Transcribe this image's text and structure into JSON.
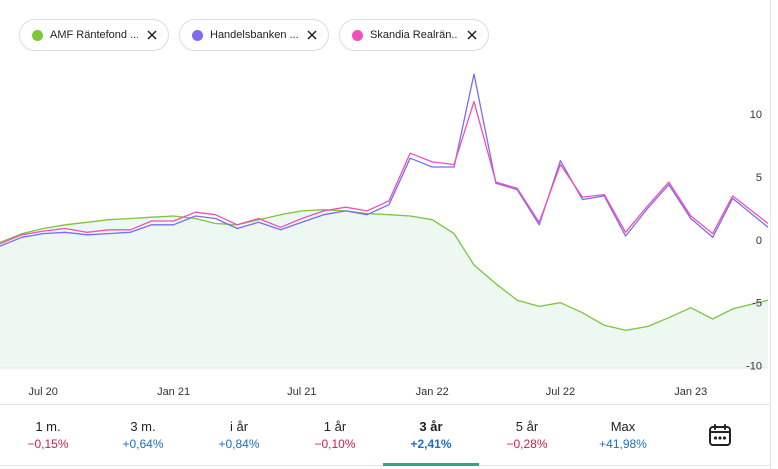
{
  "legend": [
    {
      "label": "AMF Räntefond ...",
      "color": "#7cc63a"
    },
    {
      "label": "Handelsbanken ...",
      "color": "#7b6cf0"
    },
    {
      "label": "Skandia Realrän...",
      "color": "#f050b8"
    }
  ],
  "periods": [
    {
      "label": "1 m.",
      "value": "−0,15%",
      "color": "#cc1f4a"
    },
    {
      "label": "3 m.",
      "value": "+0,64%",
      "color": "#1f6fc0"
    },
    {
      "label": "i år",
      "value": "+0,84%",
      "color": "#1f6fc0"
    },
    {
      "label": "1 år",
      "value": "−0,10%",
      "color": "#cc1f4a"
    },
    {
      "label": "3 år",
      "value": "+2,41%",
      "color": "#1f6fc0",
      "active": true
    },
    {
      "label": "5 år",
      "value": "−0,28%",
      "color": "#cc1f4a"
    },
    {
      "label": "Max",
      "value": "+41,98%",
      "color": "#1f6fc0"
    }
  ],
  "calendar_icon": "calendar-icon",
  "chart_data": {
    "type": "line",
    "x_ticks": [
      "Jul 20",
      "Jan 21",
      "Jul 21",
      "Jan 22",
      "Jul 22",
      "Jan 23"
    ],
    "x_tick_dates": [
      "2020-07-01",
      "2021-01-01",
      "2021-07-01",
      "2022-01-01",
      "2022-07-01",
      "2023-01-01"
    ],
    "x_range": [
      "2020-05-01",
      "2023-04-20"
    ],
    "y_ticks": [
      10,
      5,
      0,
      -5,
      -10
    ],
    "ylim": [
      -10.2,
      13.2
    ],
    "grid": false,
    "series": [
      {
        "name": "AMF Räntefond ...",
        "color": "#7cc63a",
        "points": [
          [
            "2020-05-01",
            -0.2
          ],
          [
            "2020-06-01",
            0.5
          ],
          [
            "2020-07-01",
            0.9
          ],
          [
            "2020-08-01",
            1.2
          ],
          [
            "2020-09-01",
            1.4
          ],
          [
            "2020-10-01",
            1.6
          ],
          [
            "2020-11-01",
            1.7
          ],
          [
            "2020-12-01",
            1.8
          ],
          [
            "2021-01-01",
            1.9
          ],
          [
            "2021-02-01",
            1.7
          ],
          [
            "2021-03-01",
            1.3
          ],
          [
            "2021-04-01",
            1.2
          ],
          [
            "2021-05-01",
            1.6
          ],
          [
            "2021-06-01",
            2.0
          ],
          [
            "2021-07-01",
            2.3
          ],
          [
            "2021-08-01",
            2.4
          ],
          [
            "2021-09-01",
            2.3
          ],
          [
            "2021-10-01",
            2.1
          ],
          [
            "2021-11-01",
            2.0
          ],
          [
            "2021-12-01",
            1.9
          ],
          [
            "2022-01-01",
            1.6
          ],
          [
            "2022-02-01",
            0.5
          ],
          [
            "2022-03-01",
            -2.0
          ],
          [
            "2022-04-01",
            -3.5
          ],
          [
            "2022-05-01",
            -4.8
          ],
          [
            "2022-06-01",
            -5.3
          ],
          [
            "2022-07-01",
            -5.0
          ],
          [
            "2022-08-01",
            -5.8
          ],
          [
            "2022-09-01",
            -6.8
          ],
          [
            "2022-10-01",
            -7.2
          ],
          [
            "2022-11-01",
            -6.9
          ],
          [
            "2022-12-01",
            -6.2
          ],
          [
            "2023-01-01",
            -5.4
          ],
          [
            "2023-02-01",
            -6.3
          ],
          [
            "2023-03-01",
            -5.5
          ],
          [
            "2023-04-20",
            -4.8
          ]
        ]
      },
      {
        "name": "Handelsbanken ...",
        "color": "#7b6cf0",
        "points": [
          [
            "2020-05-01",
            -0.5
          ],
          [
            "2020-06-01",
            0.2
          ],
          [
            "2020-07-01",
            0.5
          ],
          [
            "2020-08-01",
            0.6
          ],
          [
            "2020-09-01",
            0.4
          ],
          [
            "2020-10-01",
            0.5
          ],
          [
            "2020-11-01",
            0.6
          ],
          [
            "2020-12-01",
            1.2
          ],
          [
            "2021-01-01",
            1.2
          ],
          [
            "2021-02-01",
            1.9
          ],
          [
            "2021-03-01",
            1.7
          ],
          [
            "2021-04-01",
            0.9
          ],
          [
            "2021-05-01",
            1.4
          ],
          [
            "2021-06-01",
            0.8
          ],
          [
            "2021-07-01",
            1.4
          ],
          [
            "2021-08-01",
            2.0
          ],
          [
            "2021-09-01",
            2.3
          ],
          [
            "2021-10-01",
            2.0
          ],
          [
            "2021-11-01",
            2.8
          ],
          [
            "2021-12-01",
            6.5
          ],
          [
            "2022-01-01",
            5.8
          ],
          [
            "2022-02-01",
            5.8
          ],
          [
            "2022-03-01",
            13.2
          ],
          [
            "2022-04-01",
            4.5
          ],
          [
            "2022-05-01",
            4.0
          ],
          [
            "2022-06-01",
            1.2
          ],
          [
            "2022-07-01",
            6.3
          ],
          [
            "2022-08-01",
            3.2
          ],
          [
            "2022-09-01",
            3.5
          ],
          [
            "2022-10-01",
            0.3
          ],
          [
            "2022-11-01",
            2.5
          ],
          [
            "2022-12-01",
            4.4
          ],
          [
            "2023-01-01",
            1.7
          ],
          [
            "2023-02-01",
            0.2
          ],
          [
            "2023-03-01",
            3.3
          ],
          [
            "2023-04-20",
            1.0
          ]
        ]
      },
      {
        "name": "Skandia Realrän...",
        "color": "#f050b8",
        "points": [
          [
            "2020-05-01",
            -0.3
          ],
          [
            "2020-06-01",
            0.4
          ],
          [
            "2020-07-01",
            0.7
          ],
          [
            "2020-08-01",
            0.9
          ],
          [
            "2020-09-01",
            0.6
          ],
          [
            "2020-10-01",
            0.8
          ],
          [
            "2020-11-01",
            0.8
          ],
          [
            "2020-12-01",
            1.5
          ],
          [
            "2021-01-01",
            1.5
          ],
          [
            "2021-02-01",
            2.2
          ],
          [
            "2021-03-01",
            2.0
          ],
          [
            "2021-04-01",
            1.2
          ],
          [
            "2021-05-01",
            1.7
          ],
          [
            "2021-06-01",
            1.0
          ],
          [
            "2021-07-01",
            1.7
          ],
          [
            "2021-08-01",
            2.3
          ],
          [
            "2021-09-01",
            2.6
          ],
          [
            "2021-10-01",
            2.3
          ],
          [
            "2021-11-01",
            3.1
          ],
          [
            "2021-12-01",
            6.9
          ],
          [
            "2022-01-01",
            6.2
          ],
          [
            "2022-02-01",
            6.0
          ],
          [
            "2022-03-01",
            11.0
          ],
          [
            "2022-04-01",
            4.6
          ],
          [
            "2022-05-01",
            4.1
          ],
          [
            "2022-06-01",
            1.4
          ],
          [
            "2022-07-01",
            6.0
          ],
          [
            "2022-08-01",
            3.4
          ],
          [
            "2022-09-01",
            3.6
          ],
          [
            "2022-10-01",
            0.6
          ],
          [
            "2022-11-01",
            2.7
          ],
          [
            "2022-12-01",
            4.6
          ],
          [
            "2023-01-01",
            1.9
          ],
          [
            "2023-02-01",
            0.5
          ],
          [
            "2023-03-01",
            3.5
          ],
          [
            "2023-04-20",
            1.3
          ]
        ]
      }
    ]
  }
}
